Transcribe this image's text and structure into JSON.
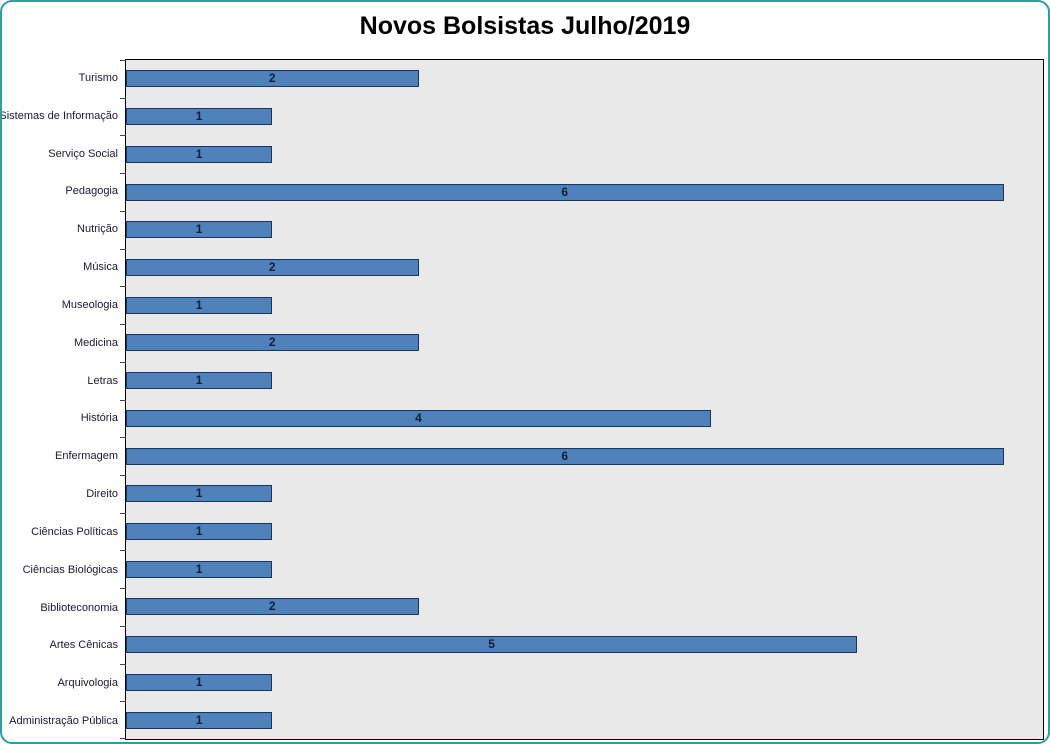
{
  "title": "Novos Bolsistas Julho/2019",
  "colors": {
    "bar_fill": "#4f81bd",
    "bar_border": "#17375e",
    "plot_background": "#e9e9e9",
    "frame_border": "#2f9e9e",
    "title_color": "#000000"
  },
  "chart_data": {
    "type": "bar",
    "orientation": "horizontal",
    "title": "Novos Bolsistas Julho/2019",
    "xlabel": "",
    "ylabel": "",
    "xlim": [
      0,
      6.27
    ],
    "grid": false,
    "legend": false,
    "data_labels": "center",
    "categories": [
      "Turismo",
      "Sistemas de Informação",
      "Serviço Social",
      "Pedagogia",
      "Nutrição",
      "Música",
      "Museologia",
      "Medicina",
      "Letras",
      "História",
      "Enfermagem",
      "Direito",
      "Ciências Políticas",
      "Ciências Biológicas",
      "Biblioteconomia",
      "Artes Cênicas",
      "Arquivologia",
      "Administração Pública"
    ],
    "values": [
      2,
      1,
      1,
      6,
      1,
      2,
      1,
      2,
      1,
      4,
      6,
      1,
      1,
      1,
      2,
      5,
      1,
      1
    ]
  }
}
